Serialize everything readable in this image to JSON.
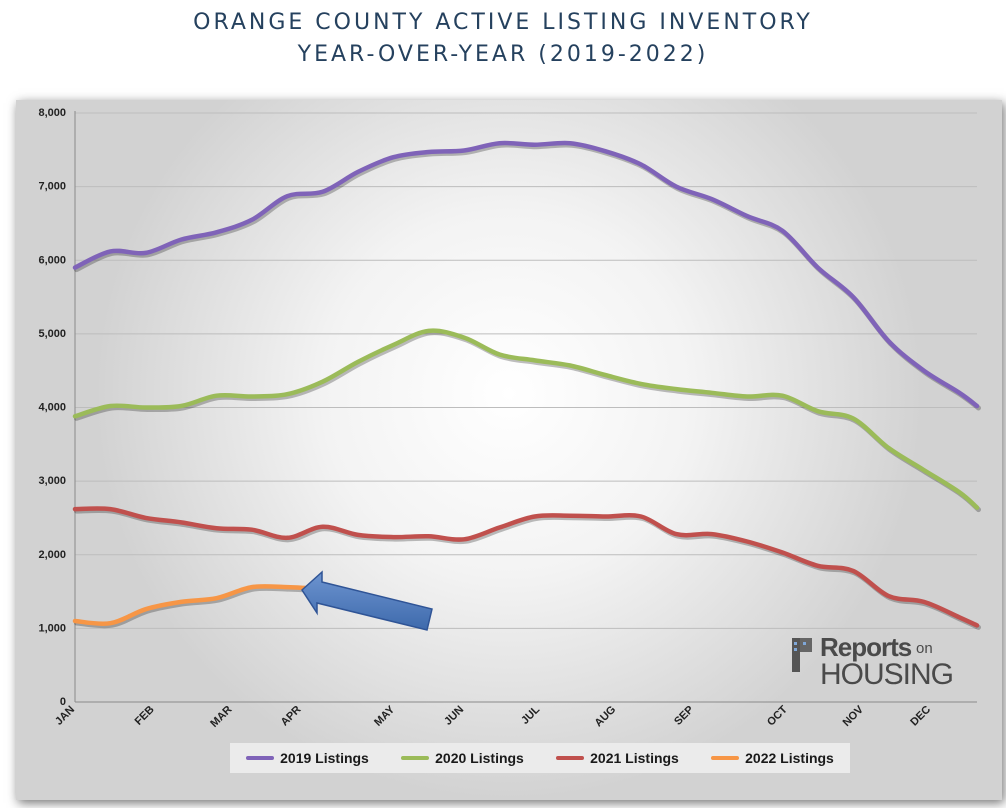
{
  "header": {
    "title_line1": "ORANGE COUNTY ACTIVE LISTING INVENTORY",
    "title_line2": "YEAR-OVER-YEAR (2019-2022)"
  },
  "logo": {
    "reports": "Reports",
    "on": "on",
    "housing": "HOUSING"
  },
  "chart_data": {
    "type": "line",
    "title": "ORANGE COUNTY ACTIVE LISTING INVENTORY YEAR-OVER-YEAR (2019-2022)",
    "xlabel": "",
    "ylabel": "",
    "ylim": [
      0,
      8000
    ],
    "yticks": [
      0,
      1000,
      2000,
      3000,
      4000,
      5000,
      6000,
      7000,
      8000
    ],
    "ytick_labels": [
      "0",
      "1,000",
      "2,000",
      "3,000",
      "4,000",
      "5,000",
      "6,000",
      "7,000",
      "8,000"
    ],
    "x_unit": "week",
    "x_range": [
      1,
      52
    ],
    "month_ticks": [
      {
        "label": "JAN",
        "week": 1
      },
      {
        "label": "FEB",
        "week": 5.5
      },
      {
        "label": "MAR",
        "week": 9.9
      },
      {
        "label": "APR",
        "week": 13.8
      },
      {
        "label": "MAY",
        "week": 19.1
      },
      {
        "label": "JUN",
        "week": 23
      },
      {
        "label": "JUL",
        "week": 27.3
      },
      {
        "label": "AUG",
        "week": 31.6
      },
      {
        "label": "SEP",
        "week": 36
      },
      {
        "label": "OCT",
        "week": 41.3
      },
      {
        "label": "NOV",
        "week": 45.6
      },
      {
        "label": "DEC",
        "week": 49.4
      }
    ],
    "grid": true,
    "legend_position": "bottom",
    "annotation": "arrow pointing at end of 2022 line",
    "series": [
      {
        "name": "2019 Listings",
        "color": "#7f63b8",
        "weeks": [
          1,
          3,
          5,
          7,
          9,
          11,
          13,
          15,
          17,
          19,
          21,
          23,
          25,
          27,
          29,
          31,
          33,
          35,
          37,
          39,
          41,
          43,
          45,
          47,
          49,
          51,
          52
        ],
        "values": [
          5900,
          6120,
          6100,
          6280,
          6380,
          6550,
          6870,
          6930,
          7200,
          7400,
          7470,
          7490,
          7590,
          7570,
          7590,
          7480,
          7300,
          7000,
          6830,
          6600,
          6400,
          5900,
          5500,
          4900,
          4500,
          4200,
          4020
        ]
      },
      {
        "name": "2020 Listings",
        "color": "#9bbb59",
        "weeks": [
          1,
          3,
          5,
          7,
          9,
          11,
          13,
          15,
          17,
          19,
          21,
          23,
          25,
          27,
          29,
          31,
          33,
          35,
          37,
          39,
          41,
          43,
          45,
          47,
          49,
          51,
          52
        ],
        "values": [
          3880,
          4020,
          4000,
          4020,
          4160,
          4150,
          4180,
          4350,
          4620,
          4850,
          5040,
          4950,
          4720,
          4640,
          4570,
          4440,
          4320,
          4250,
          4200,
          4150,
          4160,
          3950,
          3850,
          3450,
          3150,
          2850,
          2640
        ]
      },
      {
        "name": "2021 Listings",
        "color": "#c0504d",
        "weeks": [
          1,
          3,
          5,
          7,
          9,
          11,
          13,
          15,
          17,
          19,
          21,
          23,
          25,
          27,
          29,
          31,
          33,
          35,
          37,
          39,
          41,
          43,
          45,
          47,
          49,
          51,
          52
        ],
        "values": [
          2620,
          2620,
          2500,
          2440,
          2360,
          2340,
          2230,
          2380,
          2270,
          2240,
          2250,
          2210,
          2370,
          2520,
          2530,
          2520,
          2520,
          2280,
          2280,
          2180,
          2030,
          1850,
          1780,
          1440,
          1360,
          1150,
          1040
        ]
      },
      {
        "name": "2022 Listings",
        "color": "#f79646",
        "weeks": [
          1,
          3,
          5,
          7,
          9,
          11,
          13,
          14
        ],
        "values": [
          1100,
          1070,
          1260,
          1360,
          1410,
          1560,
          1560,
          1550
        ]
      }
    ]
  }
}
